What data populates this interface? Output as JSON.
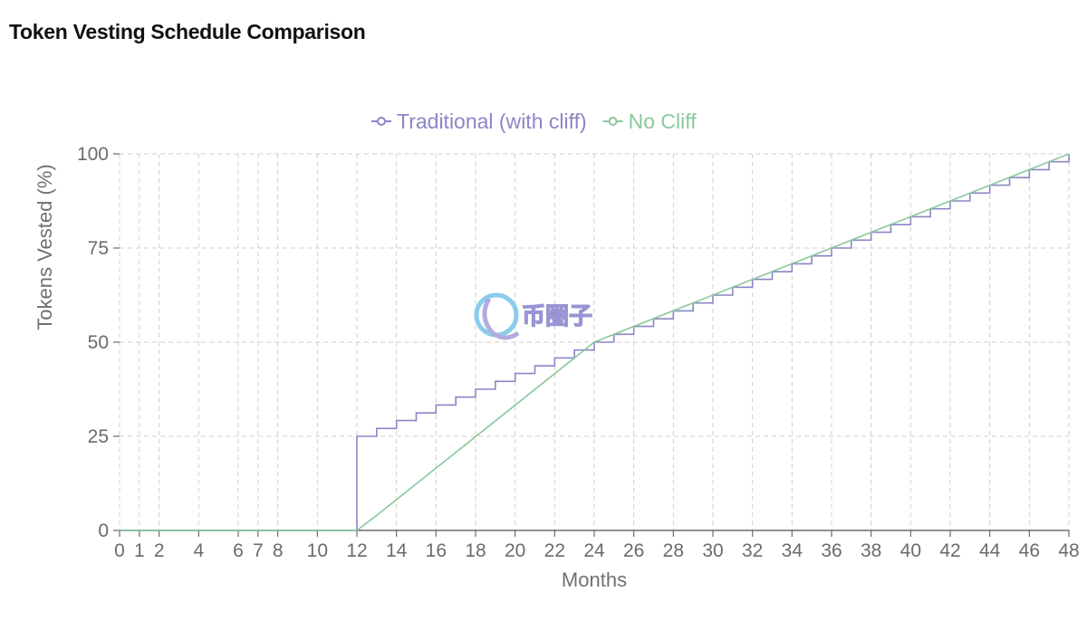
{
  "page": {
    "title": "Token Vesting Schedule Comparison"
  },
  "watermark": {
    "text": "币圈子"
  },
  "colors": {
    "traditional": "#8a86c6",
    "no_cliff": "#88c99a",
    "grid": "#cfcfcf",
    "axis": "#6b6b6b"
  },
  "chart_data": {
    "type": "line",
    "title": "Token Vesting Schedule Comparison",
    "xlabel": "Months",
    "ylabel": "Tokens Vested (%)",
    "xlim": [
      0,
      48
    ],
    "ylim": [
      0,
      100
    ],
    "x_ticks": [
      0,
      1,
      2,
      4,
      6,
      7,
      8,
      10,
      12,
      14,
      16,
      18,
      20,
      22,
      24,
      26,
      28,
      30,
      32,
      34,
      36,
      38,
      40,
      42,
      44,
      46,
      48
    ],
    "y_ticks": [
      0,
      25,
      50,
      75,
      100
    ],
    "grid": true,
    "legend_position": "top-center",
    "series": [
      {
        "name": "Traditional (with cliff)",
        "color": "#8a86c6",
        "step": true,
        "x": [
          0,
          12,
          13,
          14,
          15,
          16,
          17,
          18,
          19,
          20,
          21,
          22,
          23,
          24,
          25,
          26,
          27,
          28,
          29,
          30,
          31,
          32,
          33,
          34,
          35,
          36,
          37,
          38,
          39,
          40,
          41,
          42,
          43,
          44,
          45,
          46,
          47,
          48
        ],
        "values": [
          0,
          25,
          27.1,
          29.2,
          31.2,
          33.3,
          35.4,
          37.5,
          39.6,
          41.7,
          43.7,
          45.8,
          47.9,
          50,
          52.1,
          54.2,
          56.2,
          58.3,
          60.4,
          62.5,
          64.6,
          66.7,
          68.7,
          70.8,
          72.9,
          75,
          77.1,
          79.2,
          81.2,
          83.3,
          85.4,
          87.5,
          89.6,
          91.7,
          93.7,
          95.8,
          97.9,
          100
        ]
      },
      {
        "name": "No Cliff",
        "color": "#88c99a",
        "step": false,
        "x": [
          0,
          12,
          13,
          24,
          48
        ],
        "values": [
          0,
          0,
          4,
          50,
          100
        ]
      }
    ]
  }
}
